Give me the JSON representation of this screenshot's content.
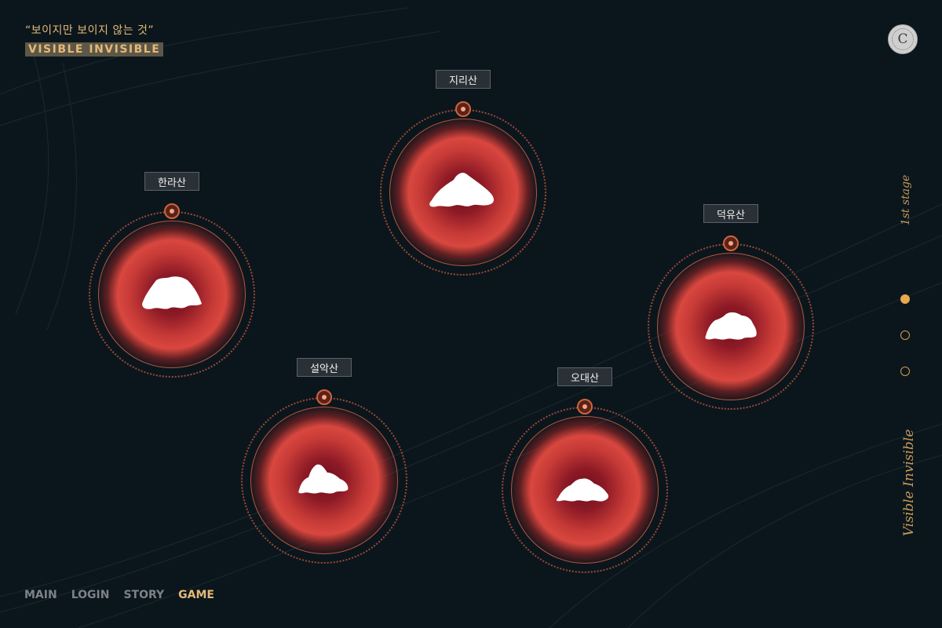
{
  "brand": {
    "tagline": "“보이지만 보이지 않는 것”",
    "logo_text": "VISIBLE INVISIBLE"
  },
  "badge": {
    "letter": "C"
  },
  "mountains": [
    {
      "name": "지리산"
    },
    {
      "name": "한라산"
    },
    {
      "name": "덕유산"
    },
    {
      "name": "설악산"
    },
    {
      "name": "오대산"
    }
  ],
  "side": {
    "stage_label": "1st stage",
    "title": "Visible Invisible",
    "pager": {
      "count": 3,
      "active_index": 0
    }
  },
  "nav": {
    "items": [
      "MAIN",
      "LOGIN",
      "STORY",
      "GAME"
    ],
    "active_index": 3
  },
  "colors": {
    "background": "#0b161c",
    "accent_gold": "#e4b979",
    "glow_red": "#d9473f",
    "ring_orange": "#c0553e"
  }
}
